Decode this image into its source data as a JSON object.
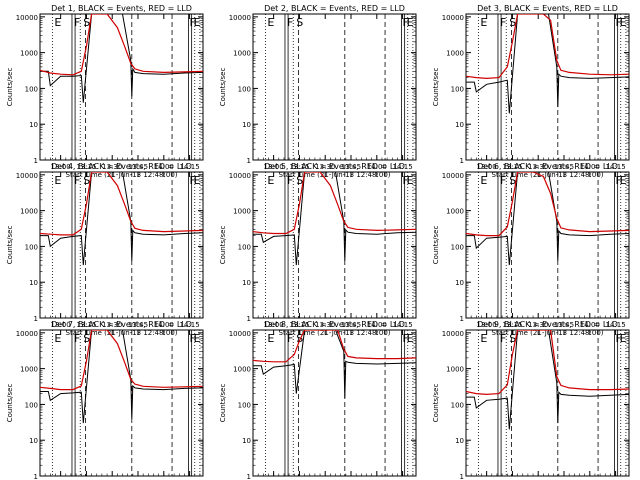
{
  "chart_data": {
    "type": "line",
    "time_axis": {
      "label": "Start Time (21-Jun-13 12:48:00)",
      "ticks": [
        "13:00",
        "13:15",
        "13:30",
        "13:45",
        "14:00",
        "14:15"
      ],
      "tick_minutes": [
        13.0,
        13.25,
        13.5,
        13.75,
        14.0,
        14.25
      ],
      "range_hours": [
        12.8,
        14.38
      ]
    },
    "y_axis": {
      "label": "Counts/sec",
      "scale": "log",
      "range": [
        1,
        12000
      ],
      "ticks": [
        "1",
        "10",
        "100",
        "1000",
        "10000"
      ],
      "tick_values": [
        1,
        10,
        100,
        1000,
        10000
      ]
    },
    "colors": {
      "events": "#000000",
      "lld": "#d00000",
      "frame": "#000000"
    },
    "markers": {
      "dotted_hours": [
        12.92,
        13.19,
        14.3,
        14.35
      ],
      "solid_hours": [
        13.11,
        13.14,
        14.24,
        14.27
      ],
      "dashed_hours": [
        13.24,
        13.69,
        14.08
      ],
      "labels": [
        {
          "text": "E",
          "hour": 12.93
        },
        {
          "text": "F",
          "hour": 13.12
        },
        {
          "text": "S",
          "hour": 13.21
        },
        {
          "text": "F",
          "hour": 14.24
        },
        {
          "text": "E",
          "hour": 14.28
        }
      ]
    },
    "panels": [
      {
        "title": "Det 1, BLACK = Events, RED = LLD",
        "series": [
          {
            "name": "Events",
            "x": [
              12.8,
              12.88,
              12.9,
              13.0,
              13.12,
              13.2,
              13.22,
              13.3,
              13.45,
              13.6,
              13.68,
              13.69,
              13.7,
              13.72,
              13.8,
              14.0,
              14.2,
              14.38
            ],
            "y": [
              300,
              300,
              120,
              220,
              220,
              230,
              40,
              12000,
              12000,
              12000,
              600,
              60,
              350,
              280,
              260,
              250,
              270,
              280
            ]
          },
          {
            "name": "LLD",
            "x": [
              12.8,
              12.9,
              13.0,
              13.12,
              13.2,
              13.25,
              13.3,
              13.45,
              13.55,
              13.62,
              13.68,
              13.72,
              13.8,
              14.0,
              14.2,
              14.38
            ],
            "y": [
              320,
              270,
              250,
              240,
              300,
              1500,
              12000,
              12000,
              5000,
              1500,
              500,
              350,
              300,
              280,
              290,
              300
            ]
          }
        ]
      },
      {
        "title": "Det 2, BLACK = Events, RED = LLD",
        "series": []
      },
      {
        "title": "Det 3, BLACK = Events, RED = LLD",
        "series": [
          {
            "name": "Events",
            "x": [
              12.8,
              12.88,
              12.9,
              13.0,
              13.12,
              13.2,
              13.22,
              13.3,
              13.45,
              13.6,
              13.68,
              13.69,
              13.7,
              13.72,
              13.8,
              14.0,
              14.2,
              14.38
            ],
            "y": [
              150,
              150,
              80,
              130,
              150,
              170,
              20,
              12000,
              12000,
              12000,
              400,
              30,
              250,
              220,
              200,
              190,
              200,
              210
            ]
          },
          {
            "name": "LLD",
            "x": [
              12.8,
              12.9,
              13.0,
              13.12,
              13.2,
              13.25,
              13.3,
              13.45,
              13.55,
              13.62,
              13.68,
              13.72,
              13.8,
              14.0,
              14.2,
              14.38
            ],
            "y": [
              220,
              200,
              190,
              200,
              400,
              2000,
              12000,
              12000,
              12000,
              8000,
              600,
              320,
              280,
              250,
              240,
              250
            ]
          }
        ]
      },
      {
        "title": "Det 4, BLACK = Events, RED = LLD",
        "series": [
          {
            "name": "Events",
            "x": [
              12.8,
              12.88,
              12.9,
              13.0,
              13.12,
              13.2,
              13.22,
              13.3,
              13.45,
              13.6,
              13.68,
              13.69,
              13.7,
              13.72,
              13.8,
              14.0,
              14.2,
              14.38
            ],
            "y": [
              200,
              200,
              100,
              170,
              190,
              200,
              30,
              12000,
              12000,
              12000,
              500,
              40,
              280,
              240,
              220,
              210,
              230,
              240
            ]
          },
          {
            "name": "LLD",
            "x": [
              12.8,
              12.9,
              13.0,
              13.12,
              13.2,
              13.25,
              13.3,
              13.45,
              13.55,
              13.62,
              13.68,
              13.72,
              13.8,
              14.0,
              14.2,
              14.38
            ],
            "y": [
              230,
              220,
              210,
              210,
              300,
              1500,
              12000,
              12000,
              5000,
              1500,
              500,
              320,
              280,
              260,
              270,
              280
            ]
          }
        ]
      },
      {
        "title": "Det 5, BLACK = Events, RED = LLD",
        "series": [
          {
            "name": "Events",
            "x": [
              12.8,
              12.88,
              12.9,
              13.0,
              13.12,
              13.2,
              13.22,
              13.3,
              13.45,
              13.6,
              13.68,
              13.69,
              13.7,
              13.72,
              13.8,
              14.0,
              14.2,
              14.38
            ],
            "y": [
              220,
              220,
              130,
              190,
              200,
              210,
              30,
              12000,
              12000,
              12000,
              500,
              40,
              290,
              250,
              230,
              220,
              240,
              250
            ]
          },
          {
            "name": "LLD",
            "x": [
              12.8,
              12.9,
              13.0,
              13.12,
              13.2,
              13.25,
              13.3,
              13.45,
              13.55,
              13.62,
              13.68,
              13.72,
              13.8,
              14.0,
              14.2,
              14.38
            ],
            "y": [
              260,
              240,
              230,
              230,
              300,
              1500,
              12000,
              12000,
              5000,
              1500,
              500,
              340,
              300,
              280,
              290,
              300
            ]
          }
        ]
      },
      {
        "title": "Det 6, BLACK = Events, RED = LLD",
        "series": [
          {
            "name": "Events",
            "x": [
              12.8,
              12.88,
              12.9,
              13.0,
              13.12,
              13.2,
              13.22,
              13.3,
              13.45,
              13.6,
              13.68,
              13.69,
              13.7,
              13.72,
              13.8,
              14.0,
              14.2,
              14.38
            ],
            "y": [
              200,
              200,
              90,
              170,
              180,
              190,
              30,
              12000,
              12000,
              12000,
              500,
              40,
              270,
              230,
              210,
              200,
              220,
              230
            ]
          },
          {
            "name": "LLD",
            "x": [
              12.8,
              12.9,
              13.0,
              13.12,
              13.2,
              13.25,
              13.3,
              13.45,
              13.55,
              13.62,
              13.68,
              13.72,
              13.8,
              14.0,
              14.2,
              14.38
            ],
            "y": [
              230,
              210,
              200,
              200,
              350,
              1800,
              12000,
              12000,
              9000,
              3000,
              600,
              330,
              290,
              260,
              270,
              280
            ]
          }
        ]
      },
      {
        "title": "Det 7, BLACK = Events, RED = LLD",
        "series": [
          {
            "name": "Events",
            "x": [
              12.8,
              12.88,
              12.9,
              13.0,
              13.12,
              13.2,
              13.22,
              13.3,
              13.45,
              13.6,
              13.68,
              13.69,
              13.7,
              13.72,
              13.8,
              14.0,
              14.2,
              14.38
            ],
            "y": [
              230,
              230,
              130,
              200,
              210,
              220,
              30,
              12000,
              12000,
              12000,
              500,
              40,
              330,
              290,
              270,
              260,
              280,
              290
            ]
          },
          {
            "name": "LLD",
            "x": [
              12.8,
              12.9,
              13.0,
              13.12,
              13.2,
              13.25,
              13.3,
              13.45,
              13.55,
              13.62,
              13.68,
              13.72,
              13.8,
              14.0,
              14.2,
              14.38
            ],
            "y": [
              300,
              280,
              260,
              260,
              330,
              1600,
              12000,
              12000,
              5000,
              1500,
              500,
              370,
              320,
              300,
              310,
              320
            ]
          }
        ]
      },
      {
        "title": "Det 8, BLACK = Events, RED = LLD",
        "series": [
          {
            "name": "Events",
            "x": [
              12.8,
              12.88,
              12.9,
              13.0,
              13.12,
              13.2,
              13.22,
              13.3,
              13.45,
              13.6,
              13.68,
              13.69,
              13.7,
              13.72,
              13.8,
              14.0,
              14.2,
              14.38
            ],
            "y": [
              1200,
              1200,
              700,
              1100,
              1200,
              1300,
              200,
              12000,
              12000,
              12000,
              3000,
              150,
              1600,
              1500,
              1400,
              1350,
              1400,
              1450
            ]
          },
          {
            "name": "LLD",
            "x": [
              12.8,
              12.9,
              13.0,
              13.12,
              13.2,
              13.25,
              13.3,
              13.45,
              13.55,
              13.62,
              13.68,
              13.72,
              13.8,
              14.0,
              14.2,
              14.38
            ],
            "y": [
              1700,
              1600,
              1550,
              1550,
              2500,
              6000,
              12000,
              12000,
              12000,
              12000,
              3500,
              2200,
              2000,
              1900,
              1900,
              2000
            ]
          }
        ]
      },
      {
        "title": "Det 9, BLACK = Events, RED = LLD",
        "series": [
          {
            "name": "Events",
            "x": [
              12.8,
              12.88,
              12.9,
              13.0,
              13.12,
              13.2,
              13.22,
              13.3,
              13.45,
              13.6,
              13.68,
              13.69,
              13.7,
              13.72,
              13.8,
              14.0,
              14.2,
              14.38
            ],
            "y": [
              160,
              160,
              80,
              130,
              140,
              150,
              20,
              12000,
              12000,
              12000,
              400,
              30,
              220,
              190,
              180,
              170,
              180,
              190
            ]
          },
          {
            "name": "LLD",
            "x": [
              12.8,
              12.9,
              13.0,
              13.12,
              13.2,
              13.25,
              13.3,
              13.45,
              13.55,
              13.62,
              13.68,
              13.72,
              13.8,
              14.0,
              14.2,
              14.38
            ],
            "y": [
              230,
              200,
              190,
              200,
              350,
              2500,
              12000,
              12000,
              12000,
              12000,
              600,
              340,
              290,
              260,
              260,
              270
            ]
          }
        ]
      }
    ]
  }
}
